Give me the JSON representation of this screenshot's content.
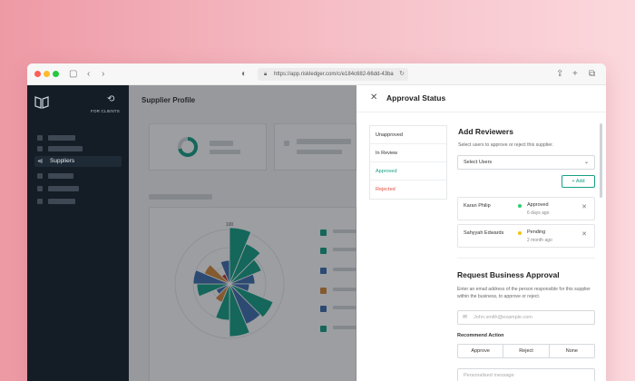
{
  "browser": {
    "url": "https://app.riskledger.com/c/e184c682-66dd-43ba"
  },
  "sidebar": {
    "clients_label": "FOR CLIENTS",
    "active_item": "Suppliers"
  },
  "main": {
    "title": "Supplier Profile",
    "polar_label": "100"
  },
  "panel": {
    "title": "Approval Status",
    "statuses": [
      "Unapproved",
      "In Review",
      "Approved",
      "Rejected"
    ],
    "status_colors": [
      "#333333",
      "#333333",
      "#16a085",
      "#e74c3c"
    ],
    "add_reviewers": {
      "title": "Add Reviewers",
      "subtitle": "Select users to approve or reject this supplier.",
      "select_placeholder": "Select Users",
      "add_button": "Add",
      "reviewers": [
        {
          "name": "Karan Philip",
          "status": "Approved",
          "when": "6 days ago",
          "color": "#2ecc71"
        },
        {
          "name": "Sahyyah Edwards",
          "status": "Pending",
          "when": "2 month ago",
          "color": "#f1c40f"
        }
      ]
    },
    "business_approval": {
      "title": "Request Business Approval",
      "description": "Enter an email address of the person responsible for this supplier within the business, to approve or reject.",
      "email_placeholder": "John.smith@example.com",
      "recommend_label": "Recommend Action",
      "actions": [
        "Approve",
        "Reject",
        "None"
      ],
      "message_placeholder": "Personalised message"
    }
  }
}
